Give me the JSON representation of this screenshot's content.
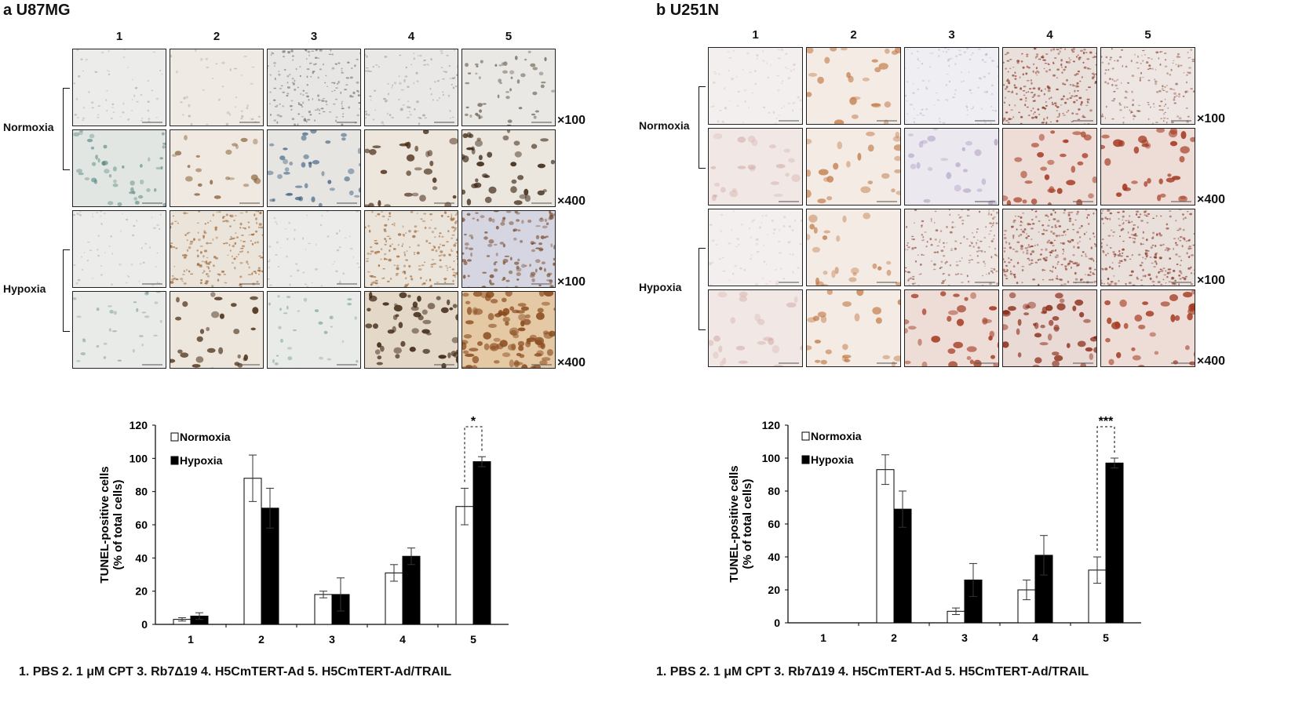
{
  "figure": {
    "panels": [
      {
        "id": "a",
        "title": "a  U87MG",
        "columns": [
          "1",
          "2",
          "3",
          "4",
          "5"
        ],
        "conditions": [
          "Normoxia",
          "Hypoxia"
        ],
        "magnifications": [
          "×100",
          "×400",
          "×100",
          "×400"
        ],
        "legend": "1. PBS   2. 1 μM CPT   3. Rb7Δ19   4. H5CmTERT-Ad   5. H5CmTERT-Ad/TRAIL",
        "micrographs": [
          [
            "gray-sparse",
            "beige-sparse",
            "gray-dense",
            "gray-medium",
            "gray-clusters"
          ],
          [
            "teal-mesh",
            "beige-brown-cells",
            "blue-cells",
            "brown-nuclei",
            "dark-brown-cluster"
          ],
          [
            "gray-sparse",
            "brown-dots",
            "gray-sparse",
            "brown-dots",
            "purple-brown-clusters"
          ],
          [
            "teal-cells",
            "brown-nuclei",
            "teal-cells",
            "dark-brown-nuclei",
            "brown-dense"
          ]
        ]
      },
      {
        "id": "b",
        "title": "b  U251N",
        "columns": [
          "1",
          "2",
          "3",
          "4",
          "5"
        ],
        "conditions": [
          "Normoxia",
          "Hypoxia"
        ],
        "magnifications": [
          "×100",
          "×400",
          "×100",
          "×400"
        ],
        "legend": "1. PBS   2. 1 μM CPT   3. Rb7Δ19   4. H5CmTERT-Ad   5. H5CmTERT-Ad/TRAIL",
        "micrographs": [
          [
            "pale-pink",
            "orange-cells",
            "pale-lilac",
            "red-dots",
            "red-dots-light"
          ],
          [
            "pale-pink-cells",
            "orange-cells",
            "lilac-cells",
            "red-nuclei",
            "red-nuclei"
          ],
          [
            "pale-pink",
            "orange-cells",
            "red-dots-light",
            "red-dots",
            "red-dots"
          ],
          [
            "pale-pink-cells",
            "orange-cells",
            "red-nuclei",
            "red-nuclei-dense",
            "red-nuclei"
          ]
        ]
      }
    ],
    "colors": {
      "normoxia": "#ffffff",
      "hypoxia": "#000000"
    }
  },
  "chart_data": [
    {
      "type": "bar",
      "panel": "a",
      "categories": [
        "1",
        "2",
        "3",
        "4",
        "5"
      ],
      "ylabel_line1": "TUNEL-positive cells",
      "ylabel_line2": "(% of total cells)",
      "ylim": [
        0,
        120
      ],
      "yticks": [
        0,
        20,
        40,
        60,
        80,
        100,
        120
      ],
      "series": [
        {
          "name": "Normoxia",
          "values": [
            3,
            88,
            18,
            31,
            71
          ],
          "errors": [
            1,
            14,
            2,
            5,
            11
          ]
        },
        {
          "name": "Hypoxia",
          "values": [
            5,
            70,
            18,
            41,
            98
          ],
          "errors": [
            2,
            12,
            10,
            5,
            3
          ]
        }
      ],
      "significance": {
        "category": "5",
        "label": "*"
      }
    },
    {
      "type": "bar",
      "panel": "b",
      "categories": [
        "1",
        "2",
        "3",
        "4",
        "5"
      ],
      "ylabel_line1": "TUNEL-positive cells",
      "ylabel_line2": "(% of total cells)",
      "ylim": [
        0,
        120
      ],
      "yticks": [
        0,
        20,
        40,
        60,
        80,
        100,
        120
      ],
      "series": [
        {
          "name": "Normoxia",
          "values": [
            0,
            93,
            7,
            20,
            32
          ],
          "errors": [
            0,
            9,
            2,
            6,
            8
          ]
        },
        {
          "name": "Hypoxia",
          "values": [
            0,
            69,
            26,
            41,
            97
          ],
          "errors": [
            0,
            11,
            10,
            12,
            3
          ]
        }
      ],
      "significance": {
        "category": "5",
        "label": "***"
      }
    }
  ]
}
